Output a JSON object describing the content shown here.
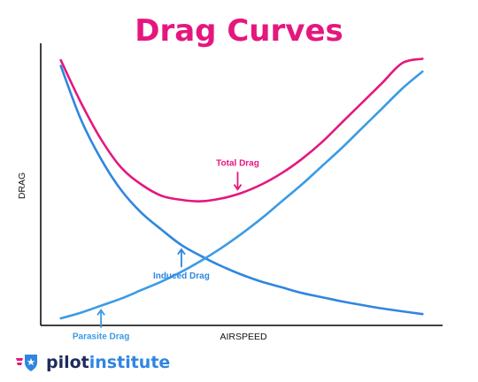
{
  "chart_data": {
    "type": "line",
    "title": "Drag Curves",
    "xlabel": "AIRSPEED",
    "ylabel": "DRAG",
    "xlim": [
      0,
      10
    ],
    "ylim": [
      0,
      10
    ],
    "grid": false,
    "series": [
      {
        "name": "Total Drag",
        "color": "#e5177e",
        "x": [
          0.5,
          1.0,
          1.5,
          2.0,
          2.5,
          3.0,
          3.5,
          4.0,
          4.5,
          5.0,
          5.5,
          6.0,
          6.5,
          7.0,
          7.5,
          8.0,
          8.5,
          9.0,
          9.5
        ],
        "y": [
          9.4,
          7.9,
          6.6,
          5.6,
          5.0,
          4.6,
          4.45,
          4.4,
          4.5,
          4.7,
          5.0,
          5.4,
          5.9,
          6.5,
          7.2,
          7.9,
          8.6,
          9.3,
          9.45
        ]
      },
      {
        "name": "Induced Drag",
        "color": "#2f86e0",
        "x": [
          0.5,
          1.0,
          1.5,
          2.0,
          2.5,
          3.0,
          3.5,
          4.0,
          4.5,
          5.0,
          5.5,
          6.0,
          6.5,
          7.0,
          7.5,
          8.0,
          8.5,
          9.0,
          9.5
        ],
        "y": [
          9.2,
          7.3,
          5.9,
          4.8,
          4.0,
          3.4,
          2.85,
          2.45,
          2.1,
          1.8,
          1.55,
          1.35,
          1.15,
          1.0,
          0.85,
          0.72,
          0.6,
          0.5,
          0.4
        ]
      },
      {
        "name": "Parasite Drag",
        "color": "#3a9be6",
        "x": [
          0.5,
          1.0,
          1.5,
          2.0,
          2.5,
          3.0,
          3.5,
          4.0,
          4.5,
          5.0,
          5.5,
          6.0,
          6.5,
          7.0,
          7.5,
          8.0,
          8.5,
          9.0,
          9.5
        ],
        "y": [
          0.25,
          0.45,
          0.7,
          0.95,
          1.25,
          1.55,
          1.9,
          2.3,
          2.75,
          3.25,
          3.8,
          4.4,
          5.0,
          5.65,
          6.3,
          7.0,
          7.7,
          8.4,
          9.0
        ]
      }
    ],
    "annotations": [
      {
        "text": "Total Drag",
        "color": "#e5177e",
        "target": "Total Drag",
        "at_x": 4.9
      },
      {
        "text": "Induced Drag",
        "color": "#2f86e0",
        "target": "Induced Drag",
        "at_x": 3.5
      },
      {
        "text": "Parasite Drag",
        "color": "#3a9be6",
        "target": "Parasite Drag",
        "at_x": 1.5
      }
    ]
  },
  "title": "Drag Curves",
  "title_color": "#e5177e",
  "logo": {
    "word_1": "pilot",
    "word_2": "institute",
    "color_1": "#1f2a5c",
    "color_2": "#2f86e0",
    "icon": "wing-shield-star-icon"
  }
}
